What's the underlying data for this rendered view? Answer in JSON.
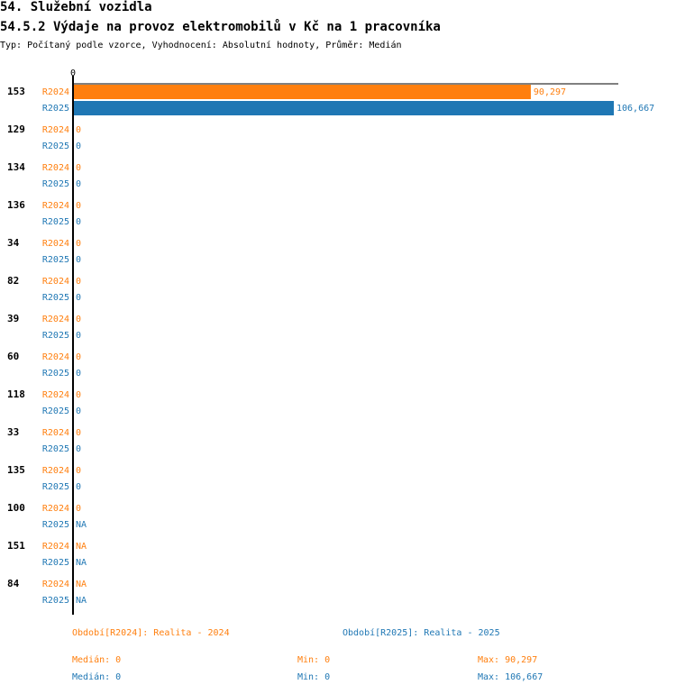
{
  "header": {
    "title": "54. Služební vozidla",
    "subtitle": "54.5.2 Výdaje na provoz elektromobilů v Kč na 1 pracovníka",
    "type_line": "Typ: Počítaný podle vzorce, Vyhodnocení: Absolutní hodnoty, Průměr: Medián"
  },
  "colors": {
    "R2024": "#ff7f0e",
    "R2025": "#1f77b4",
    "axis": "#000000"
  },
  "chart_data": {
    "type": "bar",
    "orientation": "horizontal",
    "axis_tick_label": "0",
    "xlim": [
      0,
      106667
    ],
    "categories": [
      "153",
      "129",
      "134",
      "136",
      "34",
      "82",
      "39",
      "60",
      "118",
      "33",
      "135",
      "100",
      "151",
      "84"
    ],
    "series": [
      {
        "name": "R2024",
        "values": [
          90297,
          0,
          0,
          0,
          0,
          0,
          0,
          0,
          0,
          0,
          0,
          0,
          null,
          null
        ],
        "labels": [
          "90,297",
          "0",
          "0",
          "0",
          "0",
          "0",
          "0",
          "0",
          "0",
          "0",
          "0",
          "0",
          "NA",
          "NA"
        ]
      },
      {
        "name": "R2025",
        "values": [
          106667,
          0,
          0,
          0,
          0,
          0,
          0,
          0,
          0,
          0,
          0,
          null,
          null,
          null
        ],
        "labels": [
          "106,667",
          "0",
          "0",
          "0",
          "0",
          "0",
          "0",
          "0",
          "0",
          "0",
          "0",
          "NA",
          "NA",
          "NA"
        ]
      }
    ]
  },
  "legend": {
    "r2024": {
      "period": "Období[R2024]: Realita - 2024",
      "median": "Medián: 0",
      "min": "Min: 0",
      "max": "Max: 90,297"
    },
    "r2025": {
      "period": "Období[R2025]: Realita - 2025",
      "median": "Medián: 0",
      "min": "Min: 0",
      "max": "Max: 106,667"
    }
  }
}
